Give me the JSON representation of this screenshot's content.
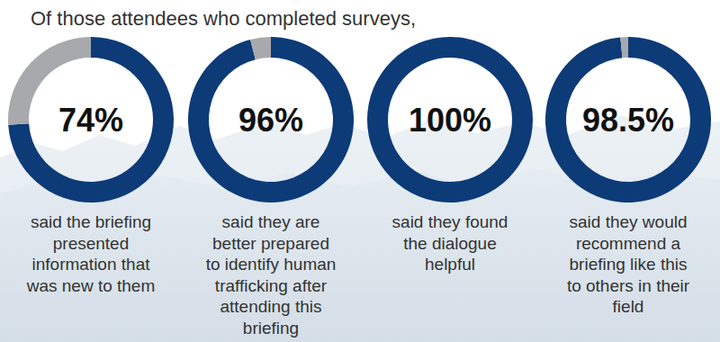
{
  "title": "Of those attendees who completed surveys,",
  "chart_data": [
    {
      "type": "donut",
      "title": [
        "said the briefing",
        "presented",
        "information that",
        "was new to them"
      ],
      "values": [
        74,
        26
      ],
      "value_labels": [
        "74%",
        null
      ],
      "colors": [
        "#0d3b78",
        "#a7a9ac"
      ],
      "data_labels": true
    },
    {
      "type": "donut",
      "title": [
        "said they are",
        "better prepared",
        "to identify human",
        "trafficking after",
        "attending this",
        "briefing"
      ],
      "values": [
        96,
        4
      ],
      "value_labels": [
        "96%",
        null
      ],
      "colors": [
        "#0d3b78",
        "#a7a9ac"
      ],
      "data_labels": true
    },
    {
      "type": "donut",
      "title": [
        "said they found",
        "the dialogue",
        "helpful"
      ],
      "values": [
        100,
        0
      ],
      "value_labels": [
        "100%",
        null
      ],
      "colors": [
        "#0d3b78",
        "#a7a9ac"
      ],
      "data_labels": true
    },
    {
      "type": "donut",
      "title": [
        "said they would",
        "recommend a",
        "briefing like this",
        "to others in their",
        "field"
      ],
      "values": [
        98.5,
        1.5
      ],
      "value_labels": [
        "98.5%",
        null
      ],
      "colors": [
        "#0d3b78",
        "#a7a9ac"
      ],
      "data_labels": true
    }
  ]
}
